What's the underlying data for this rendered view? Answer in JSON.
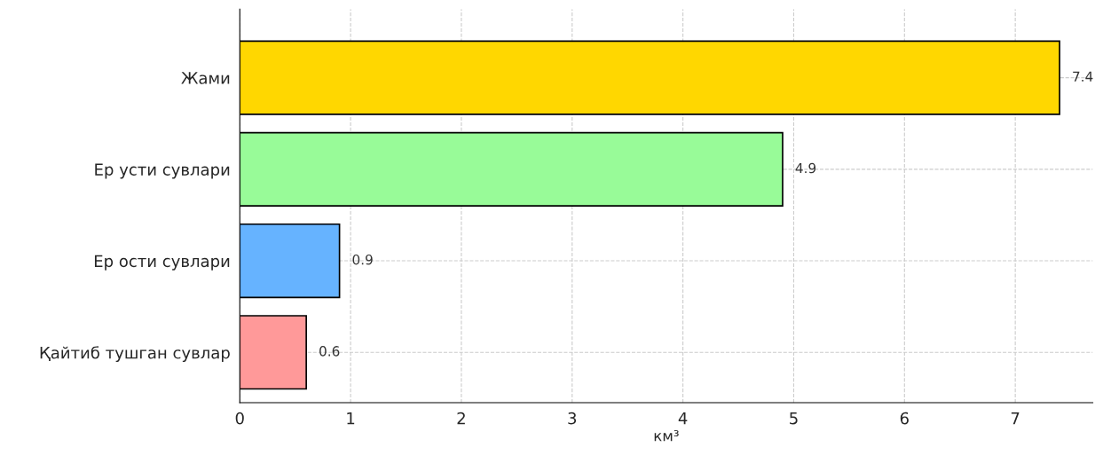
{
  "chart_data": {
    "type": "bar",
    "orientation": "horizontal",
    "xlabel": "км³",
    "categories": [
      "Жами",
      "Ер усти сувлари",
      "Ер ости сувлари",
      "Қайтиб тушган сувлар"
    ],
    "values": [
      7.4,
      4.9,
      0.9,
      0.6
    ],
    "colors": [
      "#ffd700",
      "#98fb98",
      "#66b3ff",
      "#ff9999"
    ],
    "xlim": [
      0,
      7.7
    ],
    "xticks": [
      0,
      1,
      2,
      3,
      4,
      5,
      6,
      7
    ],
    "grid": true,
    "data_labels": true
  }
}
